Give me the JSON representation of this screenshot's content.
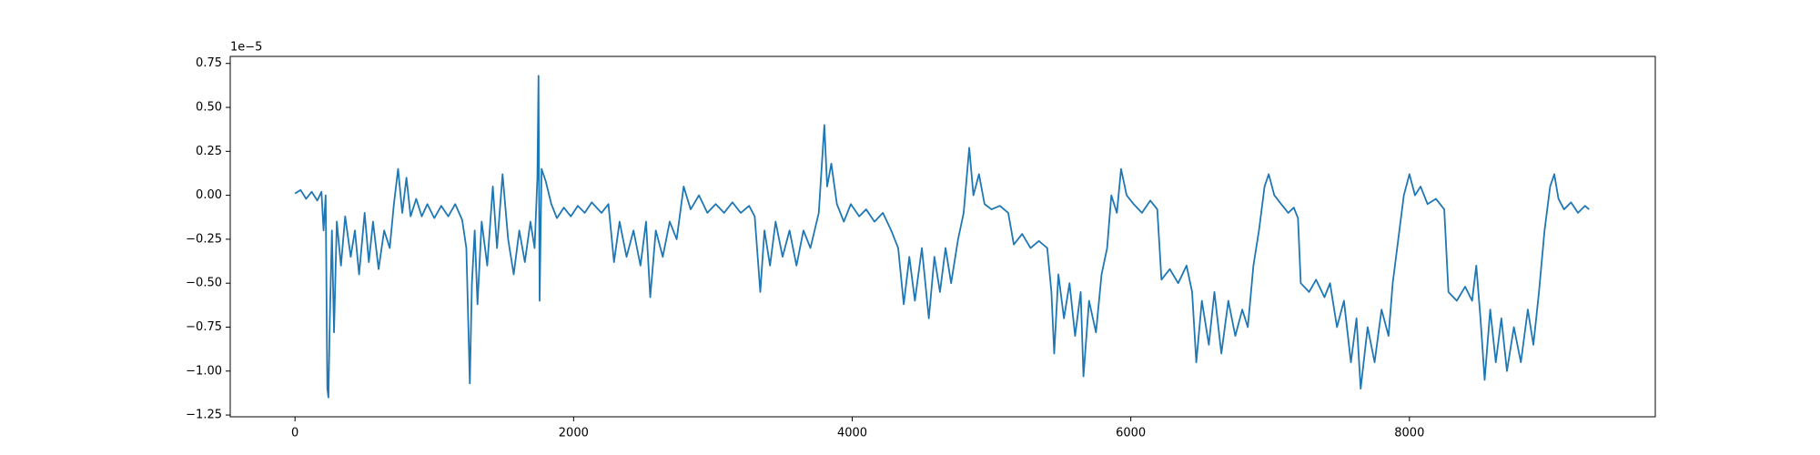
{
  "chart_data": {
    "type": "line",
    "y_offset_label": "1e−5",
    "color": "#1f77b4",
    "xlim": [
      -465,
      9765
    ],
    "ylim": [
      -1.26,
      0.79
    ],
    "xticks": [
      0,
      2000,
      4000,
      6000,
      8000
    ],
    "yticks": [
      {
        "value": -1.25,
        "label": "−1.25"
      },
      {
        "value": -1.0,
        "label": "−1.00"
      },
      {
        "value": -0.75,
        "label": "−0.75"
      },
      {
        "value": -0.5,
        "label": "−0.50"
      },
      {
        "value": -0.25,
        "label": "−0.25"
      },
      {
        "value": 0,
        "label": "0.00"
      },
      0.25,
      {
        "value": 0.5,
        "label": "0.50"
      },
      0.75
    ],
    "grid": false,
    "x": [
      0,
      40,
      80,
      120,
      160,
      190,
      205,
      220,
      232,
      240,
      250,
      265,
      280,
      300,
      330,
      360,
      400,
      430,
      460,
      500,
      530,
      560,
      600,
      640,
      680,
      710,
      740,
      770,
      800,
      830,
      870,
      910,
      950,
      1000,
      1050,
      1100,
      1150,
      1200,
      1230,
      1255,
      1270,
      1290,
      1310,
      1340,
      1380,
      1420,
      1450,
      1490,
      1530,
      1570,
      1610,
      1650,
      1690,
      1720,
      1740,
      1748,
      1756,
      1770,
      1800,
      1840,
      1880,
      1930,
      1980,
      2030,
      2080,
      2130,
      2200,
      2250,
      2290,
      2330,
      2380,
      2430,
      2480,
      2520,
      2550,
      2590,
      2640,
      2690,
      2740,
      2790,
      2840,
      2900,
      2960,
      3020,
      3080,
      3140,
      3200,
      3260,
      3300,
      3340,
      3370,
      3410,
      3450,
      3500,
      3550,
      3600,
      3650,
      3700,
      3760,
      3800,
      3820,
      3850,
      3890,
      3940,
      3990,
      4050,
      4100,
      4160,
      4220,
      4280,
      4330,
      4370,
      4410,
      4450,
      4500,
      4550,
      4590,
      4630,
      4670,
      4710,
      4760,
      4800,
      4840,
      4870,
      4910,
      4950,
      5000,
      5060,
      5120,
      5160,
      5220,
      5280,
      5340,
      5400,
      5430,
      5450,
      5480,
      5520,
      5560,
      5600,
      5640,
      5660,
      5700,
      5750,
      5790,
      5830,
      5860,
      5900,
      5930,
      5970,
      6020,
      6080,
      6140,
      6190,
      6220,
      6280,
      6340,
      6400,
      6440,
      6470,
      6510,
      6560,
      6600,
      6650,
      6700,
      6750,
      6800,
      6840,
      6880,
      6920,
      6960,
      6990,
      7030,
      7080,
      7130,
      7170,
      7200,
      7220,
      7280,
      7330,
      7390,
      7430,
      7480,
      7530,
      7580,
      7620,
      7650,
      7700,
      7750,
      7800,
      7850,
      7880,
      7920,
      7960,
      8000,
      8040,
      8080,
      8130,
      8190,
      8250,
      8280,
      8340,
      8400,
      8450,
      8480,
      8510,
      8540,
      8580,
      8620,
      8660,
      8700,
      8750,
      8800,
      8850,
      8890,
      8930,
      8970,
      9010,
      9040,
      9070,
      9110,
      9160,
      9210,
      9260,
      9290
    ],
    "values": [
      0.01,
      0.03,
      -0.02,
      0.02,
      -0.03,
      0.02,
      -0.2,
      0.0,
      -1.1,
      -1.15,
      -0.7,
      -0.2,
      -0.78,
      -0.15,
      -0.4,
      -0.12,
      -0.35,
      -0.2,
      -0.45,
      -0.1,
      -0.38,
      -0.15,
      -0.42,
      -0.2,
      -0.3,
      -0.05,
      0.15,
      -0.1,
      0.1,
      -0.12,
      -0.02,
      -0.12,
      -0.05,
      -0.13,
      -0.06,
      -0.12,
      -0.05,
      -0.14,
      -0.3,
      -1.07,
      -0.5,
      -0.2,
      -0.62,
      -0.15,
      -0.4,
      0.05,
      -0.3,
      0.12,
      -0.25,
      -0.45,
      -0.2,
      -0.38,
      -0.15,
      -0.3,
      0.1,
      0.68,
      -0.6,
      0.15,
      0.08,
      -0.05,
      -0.13,
      -0.07,
      -0.12,
      -0.06,
      -0.1,
      -0.04,
      -0.1,
      -0.05,
      -0.38,
      -0.15,
      -0.35,
      -0.2,
      -0.4,
      -0.15,
      -0.58,
      -0.2,
      -0.35,
      -0.15,
      -0.25,
      0.05,
      -0.08,
      0.0,
      -0.1,
      -0.05,
      -0.1,
      -0.04,
      -0.1,
      -0.06,
      -0.12,
      -0.55,
      -0.2,
      -0.4,
      -0.15,
      -0.35,
      -0.2,
      -0.4,
      -0.2,
      -0.3,
      -0.1,
      0.4,
      0.05,
      0.18,
      -0.05,
      -0.15,
      -0.05,
      -0.12,
      -0.08,
      -0.15,
      -0.1,
      -0.2,
      -0.3,
      -0.62,
      -0.35,
      -0.6,
      -0.3,
      -0.7,
      -0.35,
      -0.55,
      -0.3,
      -0.5,
      -0.25,
      -0.1,
      0.27,
      0.0,
      0.12,
      -0.05,
      -0.08,
      -0.06,
      -0.1,
      -0.28,
      -0.22,
      -0.3,
      -0.26,
      -0.3,
      -0.55,
      -0.9,
      -0.45,
      -0.7,
      -0.5,
      -0.8,
      -0.55,
      -1.03,
      -0.6,
      -0.78,
      -0.45,
      -0.3,
      0.0,
      -0.1,
      0.15,
      0.0,
      -0.05,
      -0.1,
      -0.03,
      -0.08,
      -0.48,
      -0.42,
      -0.5,
      -0.4,
      -0.55,
      -0.95,
      -0.6,
      -0.85,
      -0.55,
      -0.9,
      -0.6,
      -0.8,
      -0.65,
      -0.75,
      -0.4,
      -0.2,
      0.05,
      0.12,
      0.0,
      -0.05,
      -0.1,
      -0.07,
      -0.13,
      -0.5,
      -0.55,
      -0.48,
      -0.58,
      -0.5,
      -0.75,
      -0.6,
      -0.95,
      -0.7,
      -1.1,
      -0.75,
      -0.95,
      -0.65,
      -0.8,
      -0.5,
      -0.25,
      0.0,
      0.12,
      0.0,
      0.05,
      -0.05,
      -0.02,
      -0.08,
      -0.55,
      -0.6,
      -0.52,
      -0.6,
      -0.4,
      -0.7,
      -1.05,
      -0.65,
      -0.95,
      -0.7,
      -1.0,
      -0.75,
      -0.95,
      -0.65,
      -0.85,
      -0.55,
      -0.2,
      0.05,
      0.12,
      -0.02,
      -0.08,
      -0.04,
      -0.1,
      -0.06,
      -0.08
    ]
  }
}
